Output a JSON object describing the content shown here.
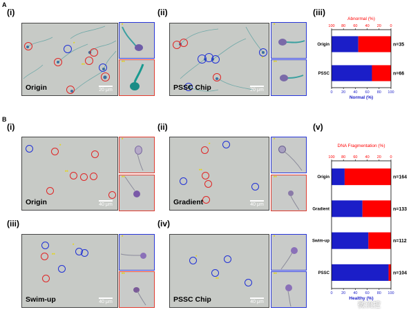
{
  "panel_A": {
    "letter": "A",
    "sub_i": "(i)",
    "sub_ii": "(ii)",
    "sub_iii": "(iii)",
    "image_i_label": "Origin",
    "image_i_scale": "20 μm",
    "image_ii_label": "PSSC Chip",
    "image_ii_scale": "20 μm",
    "inset_marks": [
      "*",
      "**"
    ]
  },
  "panel_B": {
    "letter": "B",
    "sub_i": "(i)",
    "sub_ii": "(ii)",
    "sub_iii": "(iii)",
    "sub_iv": "(iv)",
    "sub_v": "(v)",
    "image_i_label": "Origin",
    "image_ii_label": "Gradient",
    "image_iii_label": "Swim-up",
    "image_iv_label": "PSSC Chip",
    "scale": "40 μm",
    "inset_marks": [
      "*",
      "**"
    ]
  },
  "watermark": "微流控",
  "colors": {
    "normal": "#1b1ec8",
    "abnormal": "#ff0000",
    "ring_red": "#e02424",
    "ring_blue": "#1e2fd6",
    "star": "#e8d800"
  },
  "chart_data": [
    {
      "type": "bar",
      "orientation": "horizontal-stacked",
      "title": "Abnormal (%)",
      "xlabel": "Normal (%)",
      "top_axis_ticks": [
        "100",
        "80",
        "60",
        "40",
        "20",
        "0"
      ],
      "bottom_axis_ticks": [
        "0",
        "20",
        "40",
        "60",
        "80",
        "100"
      ],
      "categories": [
        "Origin",
        "PSSC"
      ],
      "series": [
        {
          "name": "Normal (%)",
          "values": [
            45,
            68
          ]
        },
        {
          "name": "Abnormal (%)",
          "values": [
            55,
            32
          ]
        }
      ],
      "counts": [
        "n=35",
        "n=66"
      ],
      "xlim": [
        0,
        100
      ]
    },
    {
      "type": "bar",
      "orientation": "horizontal-stacked",
      "title": "DNA Fragmentation (%)",
      "xlabel": "Healthy (%)",
      "top_axis_ticks": [
        "100",
        "80",
        "60",
        "40",
        "20",
        "0"
      ],
      "bottom_axis_ticks": [
        "0",
        "20",
        "40",
        "60",
        "80",
        "100"
      ],
      "categories": [
        "Origin",
        "Gradient",
        "Swim-up",
        "PSSC"
      ],
      "series": [
        {
          "name": "Healthy (%)",
          "values": [
            22,
            52,
            62,
            96
          ]
        },
        {
          "name": "DNA Fragmentation (%)",
          "values": [
            78,
            48,
            38,
            4
          ]
        }
      ],
      "counts": [
        "n=164",
        "n=133",
        "n=112",
        "n=104"
      ],
      "xlim": [
        0,
        100
      ]
    }
  ]
}
